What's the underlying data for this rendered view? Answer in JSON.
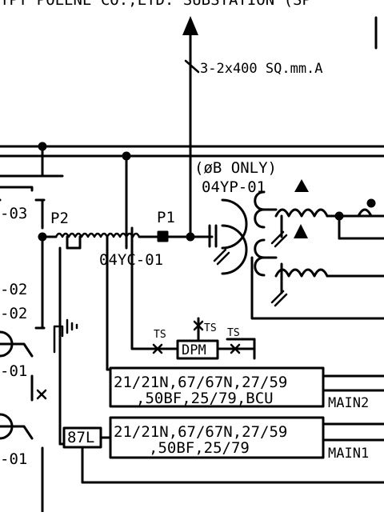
{
  "top_title": "TPT POLENE CO.,LTD. SUBSTATION (SP",
  "cable_label": "3-2x400 SQ.mm.A",
  "left_tags": [
    "-03",
    "-02",
    "-02",
    "-01",
    "-01"
  ],
  "bus_points": {
    "p1": "P1",
    "p2": "P2"
  },
  "vt": {
    "phase_note": "(øB ONLY)",
    "tag": "04YP-01"
  },
  "ct": {
    "tag": "04YC-01"
  },
  "dpm": {
    "label": "DPM",
    "ts_labels": [
      "TS",
      "TS",
      "TS"
    ]
  },
  "relays": {
    "main2": {
      "line1": "21/21N,67/67N,27/59",
      "line2": ",50BF,25/79,BCU",
      "name": "MAIN2"
    },
    "main1": {
      "line1": "21/21N,67/67N,27/59",
      "line2": ",50BF,25/79",
      "name": "MAIN1"
    },
    "diff": {
      "label": "87L"
    }
  }
}
